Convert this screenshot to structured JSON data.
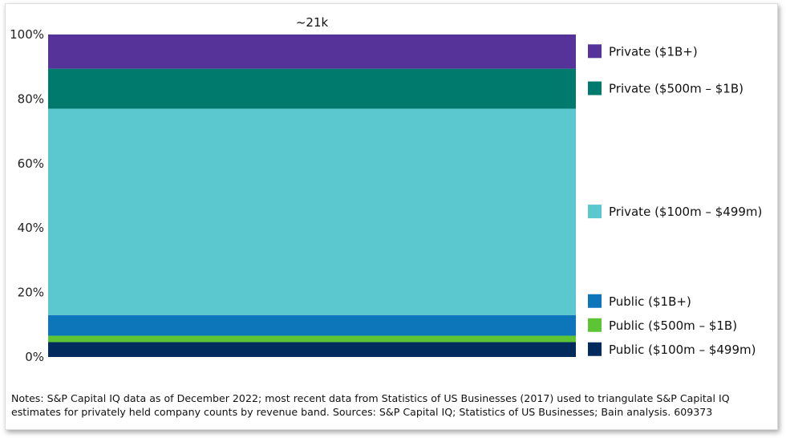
{
  "chart_data": {
    "type": "bar",
    "stacked": true,
    "categories": [
      ""
    ],
    "bar_label": "~21k",
    "ylim": [
      0,
      100
    ],
    "y_ticks": [
      {
        "value": 0,
        "label": "0%"
      },
      {
        "value": 20,
        "label": "20%"
      },
      {
        "value": 40,
        "label": "40%"
      },
      {
        "value": 60,
        "label": "60%"
      },
      {
        "value": 80,
        "label": "80%"
      },
      {
        "value": 100,
        "label": "100%"
      }
    ],
    "legend_position": "right",
    "series": [
      {
        "name": "Public ($100m – $499m)",
        "values": [
          4.6
        ],
        "color": "#002B5C"
      },
      {
        "name": "Public ($500m – $1B)",
        "values": [
          2.0
        ],
        "color": "#5CC435"
      },
      {
        "name": "Public ($1B+)",
        "values": [
          6.4
        ],
        "color": "#0D75BA"
      },
      {
        "name": "Private ($100m – $499m)",
        "values": [
          64.0
        ],
        "color": "#5BC7CF"
      },
      {
        "name": "Private ($500m – $1B)",
        "values": [
          12.4
        ],
        "color": "#007A6C"
      },
      {
        "name": "Private ($1B+)",
        "values": [
          10.6
        ],
        "color": "#553399"
      }
    ]
  },
  "notes": "Notes: S&P Capital IQ data as of December 2022; most recent data from Statistics of US Businesses (2017) used to triangulate S&P Capital IQ estimates for privately held company counts by revenue band. Sources: S&P Capital IQ; Statistics of US Businesses; Bain analysis. 609373"
}
